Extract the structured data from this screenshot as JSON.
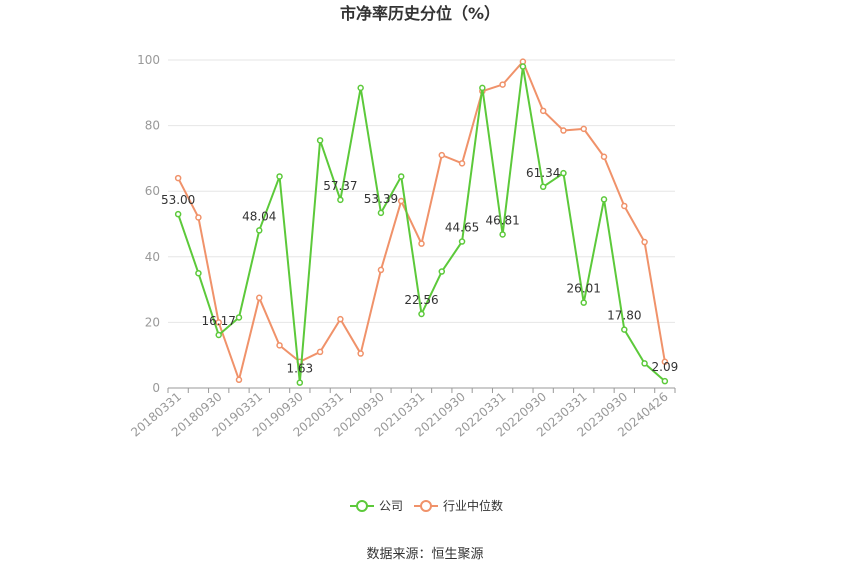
{
  "chart_data": {
    "type": "line",
    "title": "市净率历史分位（%）",
    "source": "数据来源：恒生聚源",
    "ylim": [
      0,
      100
    ],
    "yticks": [
      0,
      20,
      40,
      60,
      80,
      100
    ],
    "grid": true,
    "legend_position": "bottom",
    "x": [
      "20180331",
      "20180630",
      "20180930",
      "20181231",
      "20190331",
      "20190630",
      "20190930",
      "20191231",
      "20200331",
      "20200630",
      "20200930",
      "20201231",
      "20210331",
      "20210630",
      "20210930",
      "20211231",
      "20220331",
      "20220630",
      "20220930",
      "20221231",
      "20230331",
      "20230630",
      "20230930",
      "20231231",
      "20240426"
    ],
    "x_tick_labels": [
      "20180331",
      "20180930",
      "20190331",
      "20190930",
      "20200331",
      "20200930",
      "20210331",
      "20210930",
      "20220331",
      "20220930",
      "20230331",
      "20230930",
      "20240426"
    ],
    "series": [
      {
        "name": "公司",
        "color": "#5cc93a",
        "values": [
          53.0,
          35.0,
          16.17,
          21.5,
          48.04,
          64.5,
          1.63,
          75.5,
          57.37,
          91.5,
          53.39,
          64.5,
          22.56,
          35.5,
          44.65,
          91.5,
          46.81,
          98.0,
          61.34,
          65.5,
          26.01,
          57.5,
          17.8,
          7.5,
          2.09
        ],
        "labels": [
          "53.00",
          "",
          "16.17",
          "",
          "48.04",
          "",
          "1.63",
          "",
          "57.37",
          "",
          "53.39",
          "",
          "22.56",
          "",
          "44.65",
          "",
          "46.81",
          "",
          "61.34",
          "",
          "26.01",
          "",
          "17.80",
          "",
          "2.09"
        ]
      },
      {
        "name": "行业中位数",
        "color": "#f0926a",
        "values": [
          64.0,
          52.0,
          20.0,
          2.5,
          27.5,
          13.0,
          8.0,
          11.0,
          21.0,
          10.5,
          36.0,
          57.0,
          44.0,
          71.0,
          68.5,
          90.5,
          92.5,
          99.5,
          84.5,
          78.5,
          79.0,
          70.5,
          55.5,
          44.5,
          8.0
        ],
        "labels": []
      }
    ]
  }
}
